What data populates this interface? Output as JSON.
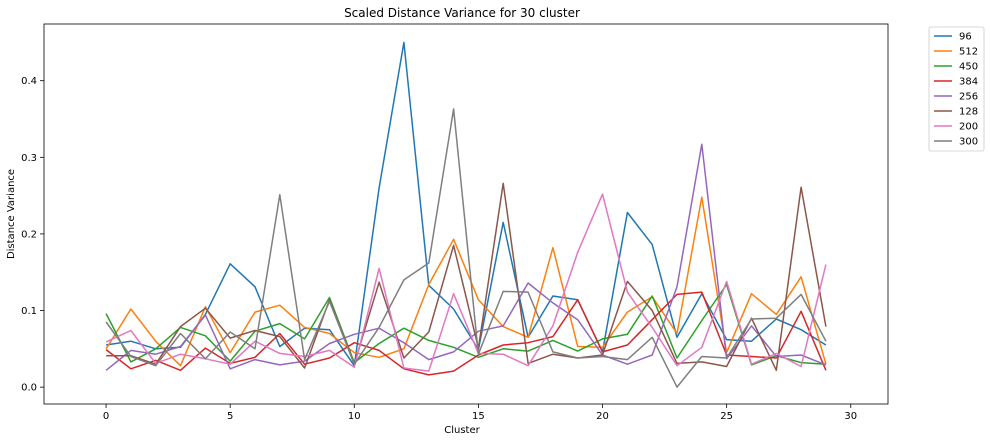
{
  "chart_data": {
    "type": "line",
    "title": "Scaled Distance Variance for 30 cluster",
    "xlabel": "Cluster",
    "ylabel": "Distance Variance",
    "xlim": [
      -2.5,
      31.5
    ],
    "ylim": [
      -0.022,
      0.474
    ],
    "xticks": [
      0,
      5,
      10,
      15,
      20,
      25,
      30
    ],
    "yticks": [
      0.0,
      0.1,
      0.2,
      0.3,
      0.4
    ],
    "ytick_labels": [
      "0.0",
      "0.1",
      "0.2",
      "0.3",
      "0.4"
    ],
    "grid": false,
    "legend_position": "outside top-right",
    "x": [
      0,
      1,
      2,
      3,
      4,
      5,
      6,
      7,
      8,
      9,
      10,
      11,
      12,
      13,
      14,
      15,
      16,
      17,
      18,
      19,
      20,
      21,
      22,
      23,
      24,
      25,
      26,
      27,
      28,
      29
    ],
    "series": [
      {
        "name": "96",
        "color": "#1f77b4",
        "values": [
          0.055,
          0.06,
          0.05,
          0.052,
          0.095,
          0.161,
          0.131,
          0.053,
          0.077,
          0.075,
          0.028,
          0.26,
          0.45,
          0.133,
          0.102,
          0.049,
          0.215,
          0.065,
          0.119,
          0.114,
          0.046,
          0.228,
          0.186,
          0.065,
          0.122,
          0.062,
          0.06,
          0.089,
          0.075,
          0.055
        ]
      },
      {
        "name": "512",
        "color": "#ff7f0e",
        "values": [
          0.05,
          0.102,
          0.06,
          0.028,
          0.105,
          0.045,
          0.098,
          0.107,
          0.078,
          0.07,
          0.045,
          0.039,
          0.05,
          0.134,
          0.193,
          0.114,
          0.079,
          0.065,
          0.182,
          0.053,
          0.052,
          0.098,
          0.118,
          0.07,
          0.248,
          0.045,
          0.122,
          0.095,
          0.144,
          0.03
        ]
      },
      {
        "name": "450",
        "color": "#2ca02c",
        "values": [
          0.096,
          0.033,
          0.05,
          0.078,
          0.067,
          0.034,
          0.073,
          0.083,
          0.063,
          0.117,
          0.032,
          0.057,
          0.077,
          0.061,
          0.052,
          0.039,
          0.05,
          0.047,
          0.061,
          0.047,
          0.063,
          0.069,
          0.119,
          0.038,
          0.087,
          0.134,
          0.029,
          0.041,
          0.032,
          0.03
        ]
      },
      {
        "name": "384",
        "color": "#d62728",
        "values": [
          0.049,
          0.024,
          0.035,
          0.022,
          0.051,
          0.031,
          0.039,
          0.07,
          0.03,
          0.038,
          0.058,
          0.048,
          0.024,
          0.016,
          0.021,
          0.042,
          0.055,
          0.058,
          0.066,
          0.114,
          0.046,
          0.055,
          0.088,
          0.121,
          0.124,
          0.042,
          0.04,
          0.038,
          0.099,
          0.022
        ]
      },
      {
        "name": "256",
        "color": "#9467bd",
        "values": [
          0.022,
          0.048,
          0.043,
          0.053,
          0.094,
          0.024,
          0.036,
          0.029,
          0.034,
          0.057,
          0.069,
          0.077,
          0.058,
          0.036,
          0.046,
          0.073,
          0.08,
          0.136,
          0.11,
          0.088,
          0.042,
          0.03,
          0.042,
          0.131,
          0.317,
          0.037,
          0.08,
          0.04,
          0.042,
          0.029
        ]
      },
      {
        "name": "128",
        "color": "#8c564b",
        "values": [
          0.041,
          0.041,
          0.03,
          0.079,
          0.103,
          0.064,
          0.074,
          0.066,
          0.025,
          0.114,
          0.03,
          0.137,
          0.038,
          0.072,
          0.185,
          0.051,
          0.266,
          0.031,
          0.043,
          0.038,
          0.042,
          0.138,
          0.1,
          0.031,
          0.033,
          0.027,
          0.09,
          0.022,
          0.261,
          0.079
        ]
      },
      {
        "name": "200",
        "color": "#e377c2",
        "values": [
          0.059,
          0.074,
          0.031,
          0.043,
          0.037,
          0.03,
          0.06,
          0.044,
          0.04,
          0.048,
          0.026,
          0.155,
          0.025,
          0.021,
          0.122,
          0.044,
          0.043,
          0.028,
          0.08,
          0.176,
          0.252,
          0.124,
          0.078,
          0.028,
          0.052,
          0.138,
          0.03,
          0.044,
          0.027,
          0.16
        ]
      },
      {
        "name": "300",
        "color": "#7f7f7f",
        "values": [
          0.085,
          0.04,
          0.028,
          0.07,
          0.037,
          0.072,
          0.05,
          0.251,
          0.036,
          0.112,
          0.03,
          0.078,
          0.14,
          0.162,
          0.363,
          0.043,
          0.125,
          0.124,
          0.046,
          0.038,
          0.04,
          0.036,
          0.065,
          0.0,
          0.04,
          0.038,
          0.089,
          0.09,
          0.121,
          0.06
        ]
      }
    ]
  }
}
